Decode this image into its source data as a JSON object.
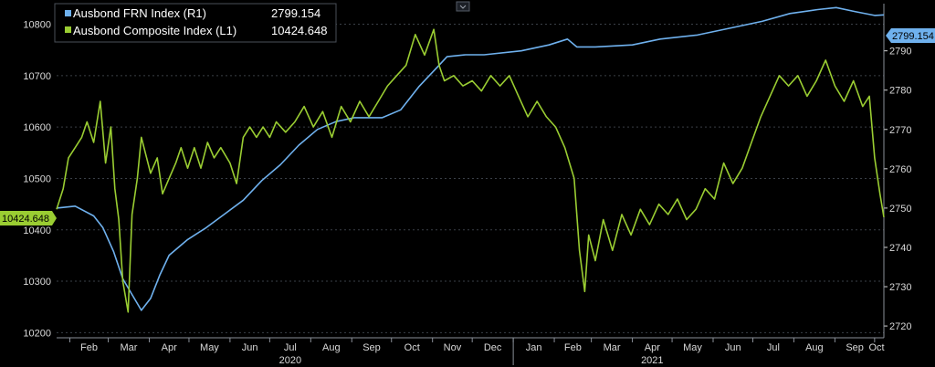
{
  "colors": {
    "background": "#000000",
    "frn": "#6fb1ee",
    "composite": "#9acd32",
    "grid": "#3a3f47",
    "axis_text": "#d9d9d9",
    "tag_text": "#000000"
  },
  "chart_data": {
    "type": "line",
    "grid": true,
    "legend_position": "top-left",
    "x_axis": {
      "month_labels": [
        "Feb",
        "Mar",
        "Apr",
        "May",
        "Jun",
        "Jul",
        "Aug",
        "Sep",
        "Oct",
        "Nov",
        "Dec",
        "Jan",
        "Feb",
        "Mar",
        "Apr",
        "May",
        "Jun",
        "Jul",
        "Aug",
        "Sep",
        "Oct"
      ],
      "year_labels": [
        {
          "label": "2020",
          "under_month": "Jul"
        },
        {
          "label": "2021",
          "under_month": "Apr"
        }
      ],
      "range": [
        "2020-01-22",
        "2021-10-08"
      ]
    },
    "left_axis": {
      "ticks": [
        "10800",
        "10700",
        "10600",
        "10500",
        "10400",
        "10300",
        "10200"
      ],
      "range": [
        10190,
        10840
      ]
    },
    "right_axis": {
      "ticks": [
        "2790",
        "2780",
        "2770",
        "2760",
        "2750",
        "2740",
        "2730",
        "2720"
      ],
      "range": [
        2717,
        2802
      ]
    },
    "series": [
      {
        "name": "Ausbond FRN Index (R1)",
        "axis": "right",
        "last_value_label": "2799.154",
        "points": [
          [
            "2020-01-22",
            2750.0
          ],
          [
            "2020-02-05",
            2750.5
          ],
          [
            "2020-02-19",
            2748.0
          ],
          [
            "2020-02-26",
            2745.0
          ],
          [
            "2020-03-05",
            2739.0
          ],
          [
            "2020-03-12",
            2732.0
          ],
          [
            "2020-03-19",
            2728.0
          ],
          [
            "2020-03-26",
            2724.0
          ],
          [
            "2020-04-02",
            2727.0
          ],
          [
            "2020-04-09",
            2733.0
          ],
          [
            "2020-04-16",
            2738.0
          ],
          [
            "2020-04-30",
            2742.0
          ],
          [
            "2020-05-14",
            2745.0
          ],
          [
            "2020-05-28",
            2748.5
          ],
          [
            "2020-06-11",
            2752.0
          ],
          [
            "2020-06-25",
            2757.0
          ],
          [
            "2020-07-09",
            2761.0
          ],
          [
            "2020-07-23",
            2766.0
          ],
          [
            "2020-08-06",
            2770.0
          ],
          [
            "2020-08-20",
            2772.0
          ],
          [
            "2020-09-03",
            2773.0
          ],
          [
            "2020-09-24",
            2773.0
          ],
          [
            "2020-10-08",
            2775.0
          ],
          [
            "2020-10-22",
            2781.0
          ],
          [
            "2020-11-05",
            2786.0
          ],
          [
            "2020-11-12",
            2788.5
          ],
          [
            "2020-11-26",
            2789.0
          ],
          [
            "2020-12-10",
            2789.0
          ],
          [
            "2021-01-07",
            2790.0
          ],
          [
            "2021-01-28",
            2791.5
          ],
          [
            "2021-02-11",
            2793.0
          ],
          [
            "2021-02-18",
            2791.0
          ],
          [
            "2021-03-04",
            2791.0
          ],
          [
            "2021-04-01",
            2791.5
          ],
          [
            "2021-04-22",
            2793.0
          ],
          [
            "2021-05-20",
            2794.0
          ],
          [
            "2021-06-10",
            2795.5
          ],
          [
            "2021-07-08",
            2797.5
          ],
          [
            "2021-07-29",
            2799.5
          ],
          [
            "2021-08-19",
            2800.5
          ],
          [
            "2021-09-02",
            2801.0
          ],
          [
            "2021-09-16",
            2800.0
          ],
          [
            "2021-10-01",
            2799.0
          ],
          [
            "2021-10-08",
            2799.154
          ]
        ]
      },
      {
        "name": "Ausbond Composite Index (L1)",
        "axis": "left",
        "last_value_label": "10424.648",
        "points": [
          [
            "2020-01-22",
            10440
          ],
          [
            "2020-01-27",
            10480
          ],
          [
            "2020-01-31",
            10540
          ],
          [
            "2020-02-05",
            10560
          ],
          [
            "2020-02-10",
            10580
          ],
          [
            "2020-02-14",
            10610
          ],
          [
            "2020-02-19",
            10570
          ],
          [
            "2020-02-24",
            10650
          ],
          [
            "2020-02-28",
            10530
          ],
          [
            "2020-03-03",
            10600
          ],
          [
            "2020-03-06",
            10480
          ],
          [
            "2020-03-09",
            10420
          ],
          [
            "2020-03-12",
            10300
          ],
          [
            "2020-03-16",
            10240
          ],
          [
            "2020-03-19",
            10430
          ],
          [
            "2020-03-23",
            10500
          ],
          [
            "2020-03-26",
            10580
          ],
          [
            "2020-03-30",
            10540
          ],
          [
            "2020-04-02",
            10510
          ],
          [
            "2020-04-07",
            10540
          ],
          [
            "2020-04-11",
            10470
          ],
          [
            "2020-04-16",
            10500
          ],
          [
            "2020-04-21",
            10530
          ],
          [
            "2020-04-25",
            10560
          ],
          [
            "2020-04-30",
            10520
          ],
          [
            "2020-05-05",
            10560
          ],
          [
            "2020-05-10",
            10520
          ],
          [
            "2020-05-15",
            10570
          ],
          [
            "2020-05-20",
            10540
          ],
          [
            "2020-05-25",
            10560
          ],
          [
            "2020-06-01",
            10530
          ],
          [
            "2020-06-06",
            10490
          ],
          [
            "2020-06-11",
            10580
          ],
          [
            "2020-06-16",
            10600
          ],
          [
            "2020-06-21",
            10580
          ],
          [
            "2020-06-26",
            10600
          ],
          [
            "2020-07-01",
            10580
          ],
          [
            "2020-07-06",
            10610
          ],
          [
            "2020-07-13",
            10590
          ],
          [
            "2020-07-20",
            10610
          ],
          [
            "2020-07-27",
            10640
          ],
          [
            "2020-08-03",
            10600
          ],
          [
            "2020-08-10",
            10630
          ],
          [
            "2020-08-17",
            10580
          ],
          [
            "2020-08-24",
            10640
          ],
          [
            "2020-08-31",
            10610
          ],
          [
            "2020-09-07",
            10650
          ],
          [
            "2020-09-14",
            10620
          ],
          [
            "2020-09-21",
            10650
          ],
          [
            "2020-09-28",
            10680
          ],
          [
            "2020-10-05",
            10700
          ],
          [
            "2020-10-12",
            10720
          ],
          [
            "2020-10-19",
            10780
          ],
          [
            "2020-10-26",
            10740
          ],
          [
            "2020-11-02",
            10790
          ],
          [
            "2020-11-06",
            10720
          ],
          [
            "2020-11-10",
            10690
          ],
          [
            "2020-11-17",
            10700
          ],
          [
            "2020-11-24",
            10680
          ],
          [
            "2020-12-01",
            10690
          ],
          [
            "2020-12-08",
            10670
          ],
          [
            "2020-12-15",
            10700
          ],
          [
            "2020-12-22",
            10680
          ],
          [
            "2020-12-29",
            10700
          ],
          [
            "2021-01-05",
            10660
          ],
          [
            "2021-01-12",
            10620
          ],
          [
            "2021-01-19",
            10650
          ],
          [
            "2021-01-26",
            10620
          ],
          [
            "2021-02-02",
            10600
          ],
          [
            "2021-02-09",
            10560
          ],
          [
            "2021-02-16",
            10500
          ],
          [
            "2021-02-20",
            10360
          ],
          [
            "2021-02-24",
            10280
          ],
          [
            "2021-02-27",
            10390
          ],
          [
            "2021-03-04",
            10340
          ],
          [
            "2021-03-10",
            10420
          ],
          [
            "2021-03-17",
            10360
          ],
          [
            "2021-03-24",
            10430
          ],
          [
            "2021-03-31",
            10390
          ],
          [
            "2021-04-07",
            10440
          ],
          [
            "2021-04-14",
            10410
          ],
          [
            "2021-04-21",
            10450
          ],
          [
            "2021-04-28",
            10430
          ],
          [
            "2021-05-05",
            10460
          ],
          [
            "2021-05-12",
            10420
          ],
          [
            "2021-05-19",
            10440
          ],
          [
            "2021-05-26",
            10480
          ],
          [
            "2021-06-02",
            10460
          ],
          [
            "2021-06-09",
            10530
          ],
          [
            "2021-06-16",
            10490
          ],
          [
            "2021-06-23",
            10520
          ],
          [
            "2021-06-30",
            10570
          ],
          [
            "2021-07-07",
            10620
          ],
          [
            "2021-07-14",
            10660
          ],
          [
            "2021-07-21",
            10700
          ],
          [
            "2021-07-28",
            10680
          ],
          [
            "2021-08-04",
            10700
          ],
          [
            "2021-08-11",
            10660
          ],
          [
            "2021-08-18",
            10690
          ],
          [
            "2021-08-25",
            10730
          ],
          [
            "2021-09-01",
            10680
          ],
          [
            "2021-09-08",
            10650
          ],
          [
            "2021-09-15",
            10690
          ],
          [
            "2021-09-22",
            10640
          ],
          [
            "2021-09-27",
            10660
          ],
          [
            "2021-10-01",
            10540
          ],
          [
            "2021-10-05",
            10470
          ],
          [
            "2021-10-08",
            10424.648
          ]
        ]
      }
    ]
  }
}
